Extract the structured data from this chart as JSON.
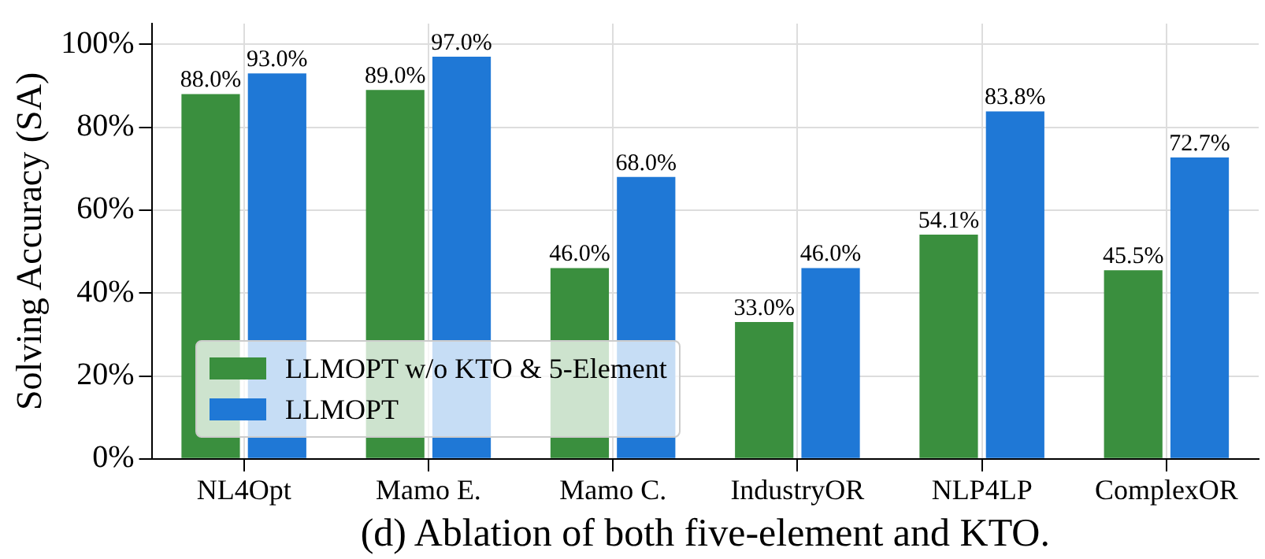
{
  "chart_data": {
    "type": "bar",
    "xlabel": "(d) Ablation of both five-element and KTO.",
    "ylabel": "Solving Accuracy (SA)",
    "categories": [
      "NL4Opt",
      "Mamo E.",
      "Mamo C.",
      "IndustryOR",
      "NLP4LP",
      "ComplexOR"
    ],
    "series": [
      {
        "name": "LLMOPT w/o KTO & 5-Element",
        "color": "#3a8f3e",
        "values": [
          88.0,
          89.0,
          46.0,
          33.0,
          54.1,
          45.5
        ],
        "value_labels": [
          "88.0%",
          "89.0%",
          "46.0%",
          "33.0%",
          "54.1%",
          "45.5%"
        ]
      },
      {
        "name": "LLMOPT",
        "color": "#1f78d6",
        "values": [
          93.0,
          97.0,
          68.0,
          46.0,
          83.8,
          72.7
        ],
        "value_labels": [
          "93.0%",
          "97.0%",
          "68.0%",
          "46.0%",
          "83.8%",
          "72.7%"
        ]
      }
    ],
    "ylim": [
      0,
      105
    ],
    "yticks": [
      {
        "value": 0,
        "label": "0%"
      },
      {
        "value": 20,
        "label": "20%"
      },
      {
        "value": 40,
        "label": "40%"
      },
      {
        "value": 60,
        "label": "60%"
      },
      {
        "value": 80,
        "label": "80%"
      },
      {
        "value": 100,
        "label": "100%"
      }
    ],
    "grid": true,
    "legend": "bottom left"
  }
}
